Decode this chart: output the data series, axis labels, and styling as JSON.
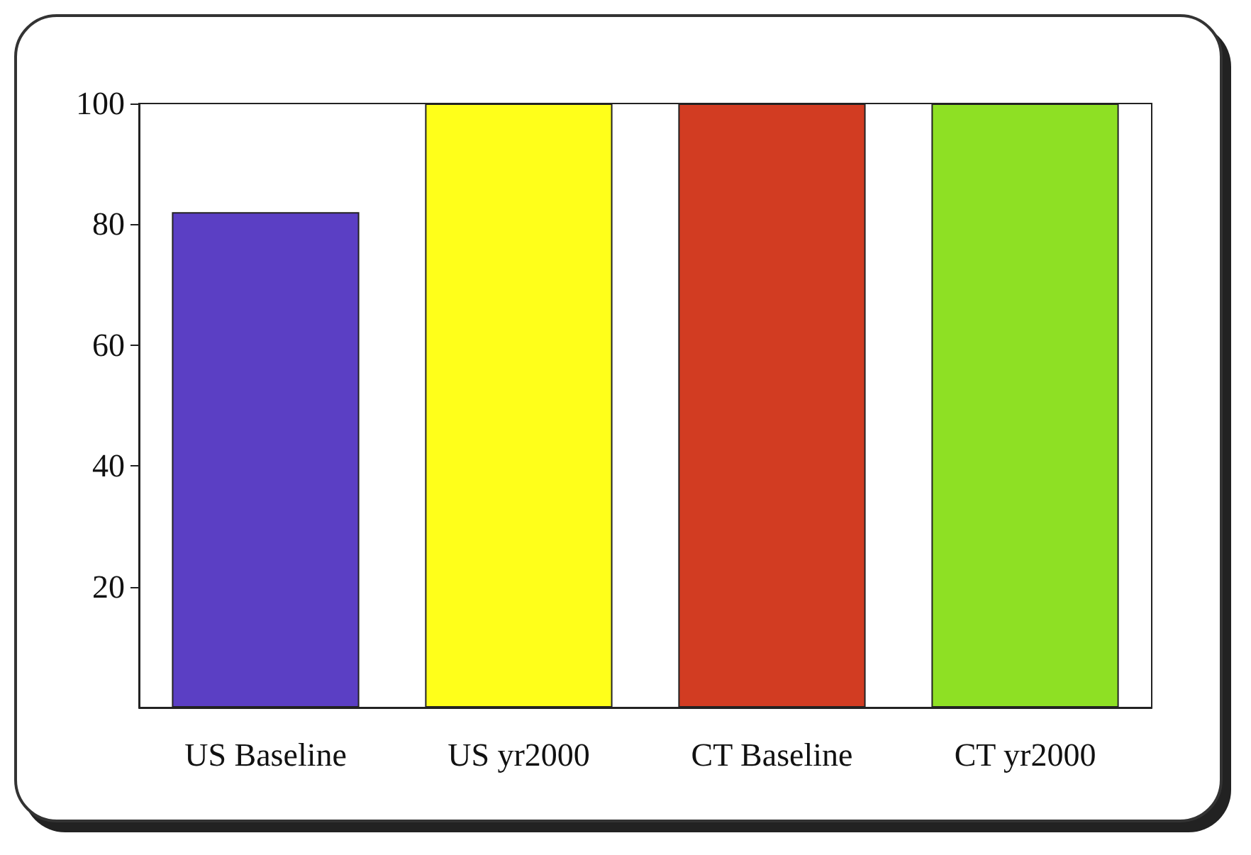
{
  "chart_data": {
    "type": "bar",
    "categories": [
      "US Baseline",
      "US yr2000",
      "CT Baseline",
      "CT yr2000"
    ],
    "values": [
      82,
      100,
      100,
      100
    ],
    "colors": [
      "#5b3fc4",
      "#ffff1a",
      "#d23c22",
      "#8ee024"
    ],
    "ylim": [
      0,
      100
    ],
    "yticks": [
      20,
      40,
      60,
      80,
      100
    ],
    "grid": false
  }
}
